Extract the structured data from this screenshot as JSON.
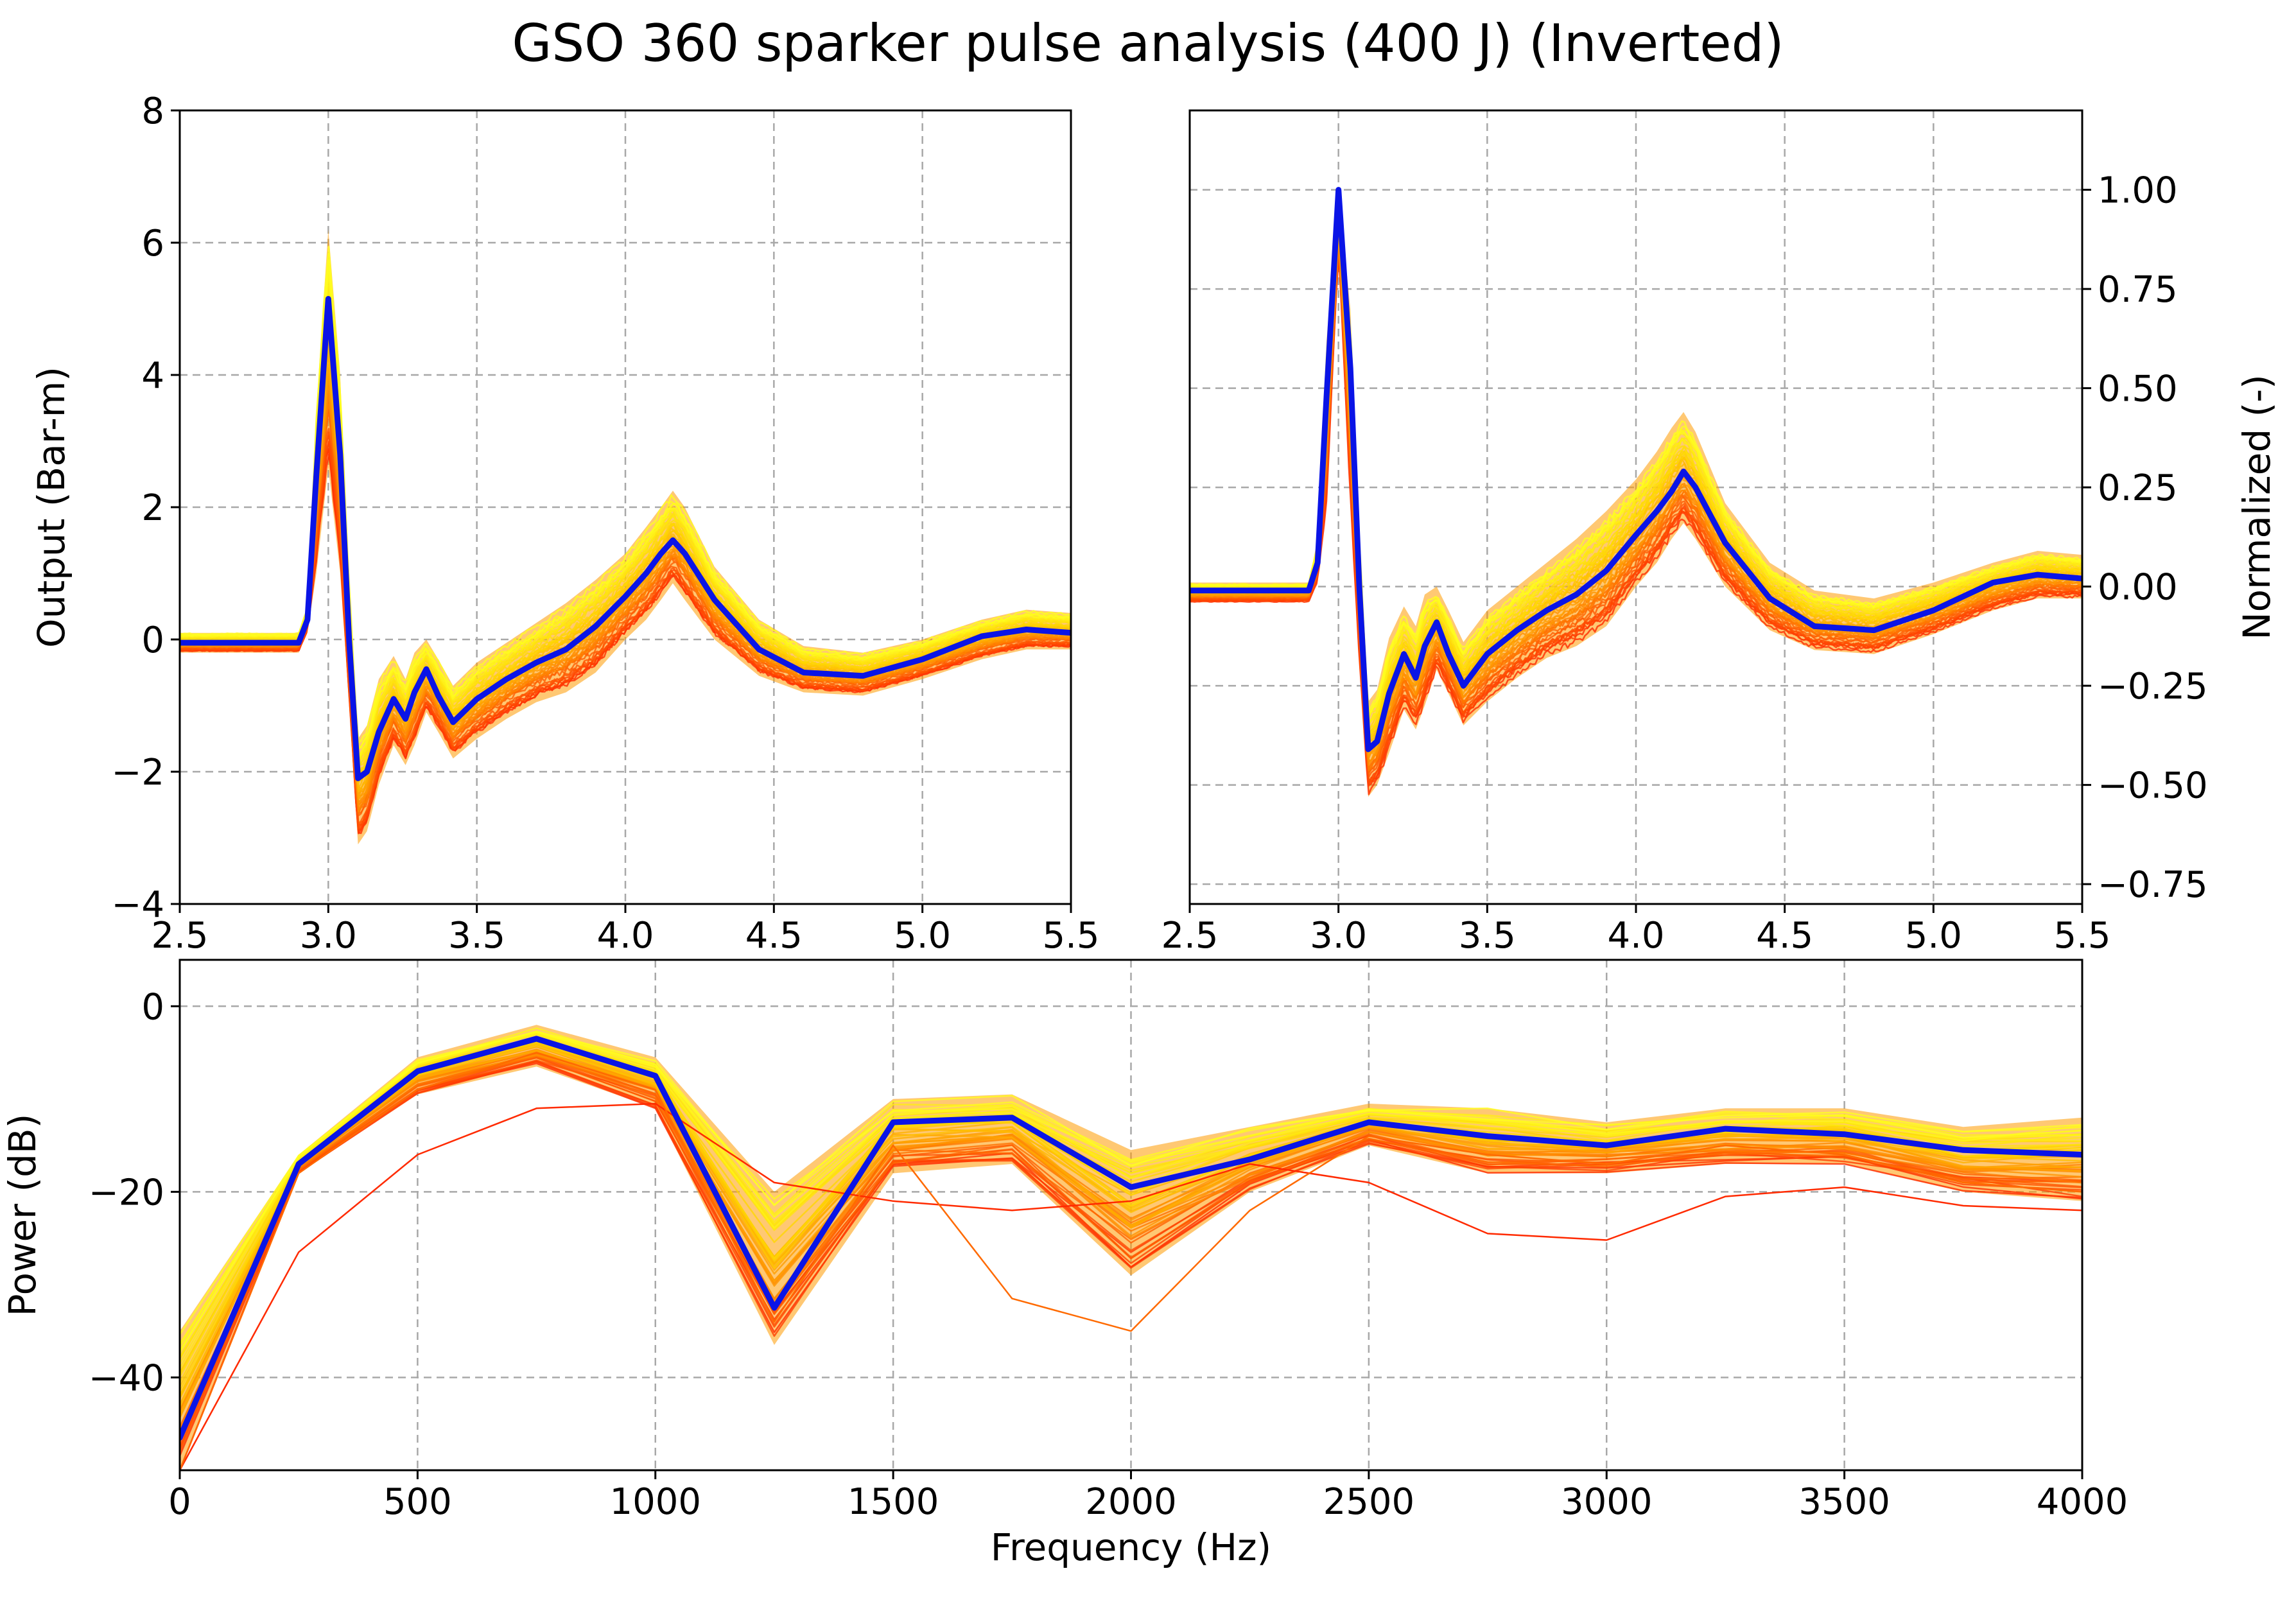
{
  "chart_data": [
    {
      "id": "absolute",
      "type": "line",
      "title": "GSO 360 sparker pulse analysis (400 J) (Inverted)",
      "xlabel": "",
      "ylabel": "Output (Bar-m)",
      "xlim": [
        2.5,
        5.5
      ],
      "ylim": [
        -4,
        8
      ],
      "xticks": [
        2.5,
        3.0,
        3.5,
        4.0,
        4.5,
        5.0,
        5.5
      ],
      "xtick_labels": [
        "2.5",
        "3.0",
        "3.5",
        "4.0",
        "4.5",
        "5.0",
        "5.5"
      ],
      "yticks": [
        -4,
        -2,
        0,
        2,
        4,
        6,
        8
      ],
      "ytick_labels": [
        "−4",
        "−2",
        "0",
        "2",
        "4",
        "6",
        "8"
      ],
      "grid": true,
      "series": [
        {
          "role": "mean",
          "color": "#0a14e6",
          "x": [
            2.5,
            2.9,
            2.93,
            2.96,
            3.0,
            3.04,
            3.07,
            3.1,
            3.13,
            3.17,
            3.22,
            3.26,
            3.29,
            3.33,
            3.37,
            3.42,
            3.5,
            3.6,
            3.7,
            3.8,
            3.9,
            4.0,
            4.07,
            4.12,
            4.16,
            4.2,
            4.3,
            4.45,
            4.6,
            4.8,
            5.0,
            5.2,
            5.35,
            5.5
          ],
          "y": [
            -0.05,
            -0.05,
            0.3,
            2.5,
            5.15,
            2.8,
            0.0,
            -2.1,
            -2.0,
            -1.4,
            -0.9,
            -1.2,
            -0.8,
            -0.45,
            -0.85,
            -1.25,
            -0.9,
            -0.6,
            -0.35,
            -0.15,
            0.2,
            0.65,
            1.0,
            1.3,
            1.5,
            1.3,
            0.6,
            -0.15,
            -0.5,
            -0.55,
            -0.3,
            0.05,
            0.15,
            0.1
          ]
        }
      ],
      "envelope": {
        "x": [
          2.5,
          2.9,
          2.93,
          2.96,
          3.0,
          3.04,
          3.07,
          3.1,
          3.13,
          3.17,
          3.22,
          3.26,
          3.29,
          3.33,
          3.37,
          3.42,
          3.5,
          3.6,
          3.7,
          3.8,
          3.9,
          4.0,
          4.07,
          4.12,
          4.16,
          4.2,
          4.3,
          4.45,
          4.6,
          4.8,
          5.0,
          5.2,
          5.35,
          5.5
        ],
        "upper": [
          0.1,
          0.1,
          0.5,
          3.5,
          6.2,
          4.0,
          0.9,
          -1.5,
          -1.3,
          -0.6,
          -0.25,
          -0.6,
          -0.2,
          0.0,
          -0.3,
          -0.7,
          -0.35,
          -0.05,
          0.25,
          0.55,
          0.9,
          1.3,
          1.7,
          2.0,
          2.25,
          2.0,
          1.1,
          0.3,
          -0.1,
          -0.2,
          0.0,
          0.3,
          0.45,
          0.4
        ],
        "lower": [
          -0.2,
          -0.2,
          0.1,
          1.0,
          2.6,
          1.0,
          -1.0,
          -3.1,
          -2.9,
          -2.2,
          -1.6,
          -1.9,
          -1.6,
          -1.1,
          -1.4,
          -1.8,
          -1.5,
          -1.2,
          -0.95,
          -0.8,
          -0.5,
          0.0,
          0.3,
          0.6,
          0.85,
          0.6,
          0.0,
          -0.55,
          -0.8,
          -0.85,
          -0.6,
          -0.3,
          -0.15,
          -0.15
        ]
      },
      "envelope_colors": [
        "#ff2a00",
        "#ff8c00",
        "#ffd200",
        "#ffff20"
      ]
    },
    {
      "id": "normalized",
      "type": "line",
      "xlabel": "",
      "ylabel": "Normalized (-)",
      "xlim": [
        2.5,
        5.5
      ],
      "ylim": [
        -0.8,
        1.2
      ],
      "yaxis_side": "right",
      "xticks": [
        2.5,
        3.0,
        3.5,
        4.0,
        4.5,
        5.0,
        5.5
      ],
      "xtick_labels": [
        "2.5",
        "3.0",
        "3.5",
        "4.0",
        "4.5",
        "5.0",
        "5.5"
      ],
      "yticks": [
        -0.75,
        -0.5,
        -0.25,
        0.0,
        0.25,
        0.5,
        0.75,
        1.0
      ],
      "ytick_labels": [
        "−0.75",
        "−0.50",
        "−0.25",
        "0.00",
        "0.25",
        "0.50",
        "0.75",
        "1.00"
      ],
      "grid": true,
      "series": [
        {
          "role": "mean",
          "color": "#0a14e6",
          "x": [
            2.5,
            2.9,
            2.93,
            2.96,
            3.0,
            3.04,
            3.07,
            3.1,
            3.13,
            3.17,
            3.22,
            3.26,
            3.29,
            3.33,
            3.37,
            3.42,
            3.5,
            3.6,
            3.7,
            3.8,
            3.9,
            4.0,
            4.07,
            4.12,
            4.16,
            4.2,
            4.3,
            4.45,
            4.6,
            4.8,
            5.0,
            5.2,
            5.35,
            5.5
          ],
          "y": [
            -0.01,
            -0.01,
            0.06,
            0.48,
            1.0,
            0.55,
            0.0,
            -0.41,
            -0.39,
            -0.27,
            -0.17,
            -0.23,
            -0.15,
            -0.09,
            -0.17,
            -0.25,
            -0.17,
            -0.11,
            -0.06,
            -0.02,
            0.04,
            0.13,
            0.19,
            0.24,
            0.29,
            0.25,
            0.11,
            -0.03,
            -0.1,
            -0.11,
            -0.06,
            0.01,
            0.03,
            0.02
          ]
        }
      ],
      "envelope": {
        "x": [
          2.5,
          2.9,
          2.93,
          2.96,
          3.0,
          3.04,
          3.07,
          3.1,
          3.13,
          3.17,
          3.22,
          3.26,
          3.29,
          3.33,
          3.37,
          3.42,
          3.5,
          3.6,
          3.7,
          3.8,
          3.9,
          4.0,
          4.07,
          4.12,
          4.16,
          4.2,
          4.3,
          4.45,
          4.6,
          4.8,
          5.0,
          5.2,
          5.35,
          5.5
        ],
        "upper": [
          0.01,
          0.01,
          0.12,
          0.62,
          1.0,
          0.7,
          0.15,
          -0.29,
          -0.26,
          -0.13,
          -0.05,
          -0.1,
          -0.02,
          0.0,
          -0.06,
          -0.14,
          -0.06,
          0.0,
          0.06,
          0.12,
          0.19,
          0.27,
          0.34,
          0.4,
          0.44,
          0.39,
          0.21,
          0.06,
          -0.01,
          -0.03,
          0.01,
          0.06,
          0.09,
          0.08
        ],
        "lower": [
          -0.04,
          -0.04,
          0.01,
          0.2,
          0.85,
          0.2,
          -0.2,
          -0.53,
          -0.5,
          -0.42,
          -0.31,
          -0.36,
          -0.3,
          -0.21,
          -0.27,
          -0.35,
          -0.29,
          -0.23,
          -0.18,
          -0.15,
          -0.1,
          0.0,
          0.06,
          0.12,
          0.16,
          0.12,
          0.0,
          -0.11,
          -0.16,
          -0.17,
          -0.12,
          -0.06,
          -0.03,
          -0.03
        ]
      },
      "envelope_colors": [
        "#ff2a00",
        "#ff8c00",
        "#ffd200",
        "#ffff20"
      ]
    },
    {
      "id": "spectrum",
      "type": "line",
      "xlabel": "Frequency (Hz)",
      "ylabel": "Power (dB)",
      "xlim": [
        0,
        4000
      ],
      "ylim": [
        -50,
        5
      ],
      "xticks": [
        0,
        500,
        1000,
        1500,
        2000,
        2500,
        3000,
        3500,
        4000
      ],
      "xtick_labels": [
        "0",
        "500",
        "1000",
        "1500",
        "2000",
        "2500",
        "3000",
        "3500",
        "4000"
      ],
      "yticks": [
        -40,
        -20,
        0
      ],
      "ytick_labels": [
        "−40",
        "−20",
        "0"
      ],
      "grid": true,
      "series": [
        {
          "role": "mean",
          "color": "#0a14e6",
          "x": [
            0,
            250,
            500,
            750,
            1000,
            1250,
            1500,
            1750,
            2000,
            2250,
            2500,
            2750,
            3000,
            3250,
            3500,
            3750,
            4000
          ],
          "y": [
            -46.5,
            -17,
            -7,
            -3.5,
            -7.5,
            -32.5,
            -12.5,
            -12,
            -19.5,
            -16.5,
            -12.5,
            -14,
            -15,
            -13.2,
            -13.8,
            -15.5,
            -16
          ]
        }
      ],
      "envelope": {
        "x": [
          0,
          250,
          500,
          750,
          1000,
          1250,
          1500,
          1750,
          2000,
          2250,
          2500,
          2750,
          3000,
          3250,
          3500,
          3750,
          4000
        ],
        "upper": [
          -35,
          -16,
          -5.5,
          -2,
          -5.5,
          -20,
          -10,
          -9.5,
          -15.5,
          -13,
          -10.5,
          -11,
          -12.5,
          -11,
          -11,
          -13,
          -12
        ],
        "lower": [
          -50,
          -18,
          -9.5,
          -6.5,
          -11,
          -36.5,
          -18,
          -17,
          -29,
          -20,
          -15,
          -18,
          -18,
          -17,
          -17,
          -20,
          -21
        ]
      },
      "outliers": [
        {
          "color": "#ff2a00",
          "x": [
            0,
            250,
            500,
            750,
            1000,
            1250,
            1500,
            1750,
            2000,
            2250,
            2500,
            2750,
            3000,
            3250,
            3500,
            3750,
            4000
          ],
          "y": [
            -50,
            -26.5,
            -16,
            -11,
            -10.5,
            -19,
            -21,
            -22,
            -21,
            -17,
            -19,
            -24.5,
            -25.2,
            -20.5,
            -19.5,
            -21.5,
            -22
          ]
        },
        {
          "color": "#ff6a00",
          "x": [
            0,
            250,
            500,
            750,
            1000,
            1250,
            1500,
            1750,
            2000,
            2250,
            2500,
            2750,
            3000,
            3250,
            3500,
            3750,
            4000
          ],
          "y": [
            -50,
            -18,
            -9,
            -5,
            -9,
            -34,
            -15,
            -31.5,
            -35,
            -22,
            -14,
            -16,
            -17,
            -15,
            -16,
            -19,
            -20
          ]
        }
      ],
      "envelope_colors": [
        "#ff2a00",
        "#ff8c00",
        "#ffd200",
        "#ffff20"
      ]
    }
  ]
}
